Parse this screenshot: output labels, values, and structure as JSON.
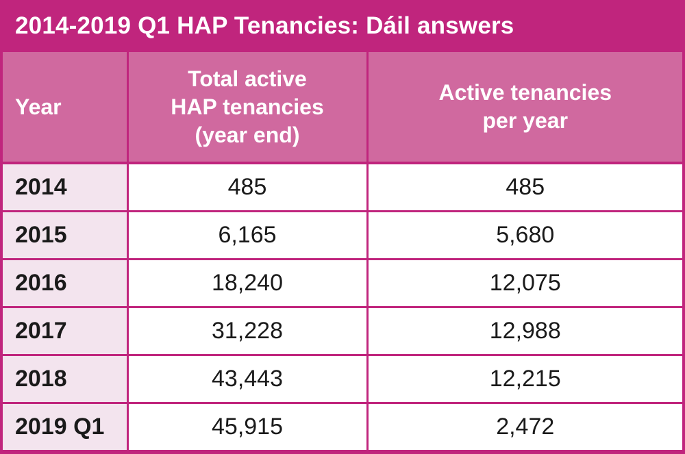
{
  "title": "2014-2019 Q1 HAP Tenancies: Dáil answers",
  "headers": {
    "year": "Year",
    "total_lines": [
      "Total active",
      "HAP tenancies",
      "(year end)"
    ],
    "per_year_lines": [
      "Active tenancies",
      "per year"
    ]
  },
  "rows": [
    {
      "year": "2014",
      "total": "485",
      "per_year": "485"
    },
    {
      "year": "2015",
      "total": "6,165",
      "per_year": "5,680"
    },
    {
      "year": "2016",
      "total": "18,240",
      "per_year": "12,075"
    },
    {
      "year": "2017",
      "total": "31,228",
      "per_year": "12,988"
    },
    {
      "year": "2018",
      "total": "43,443",
      "per_year": "12,215"
    },
    {
      "year": "2019 Q1",
      "total": "45,915",
      "per_year": "2,472"
    }
  ],
  "colors": {
    "frame": "#c0257d",
    "header_bg": "#d0699f",
    "year_cell_bg": "#f3e4ee"
  }
}
